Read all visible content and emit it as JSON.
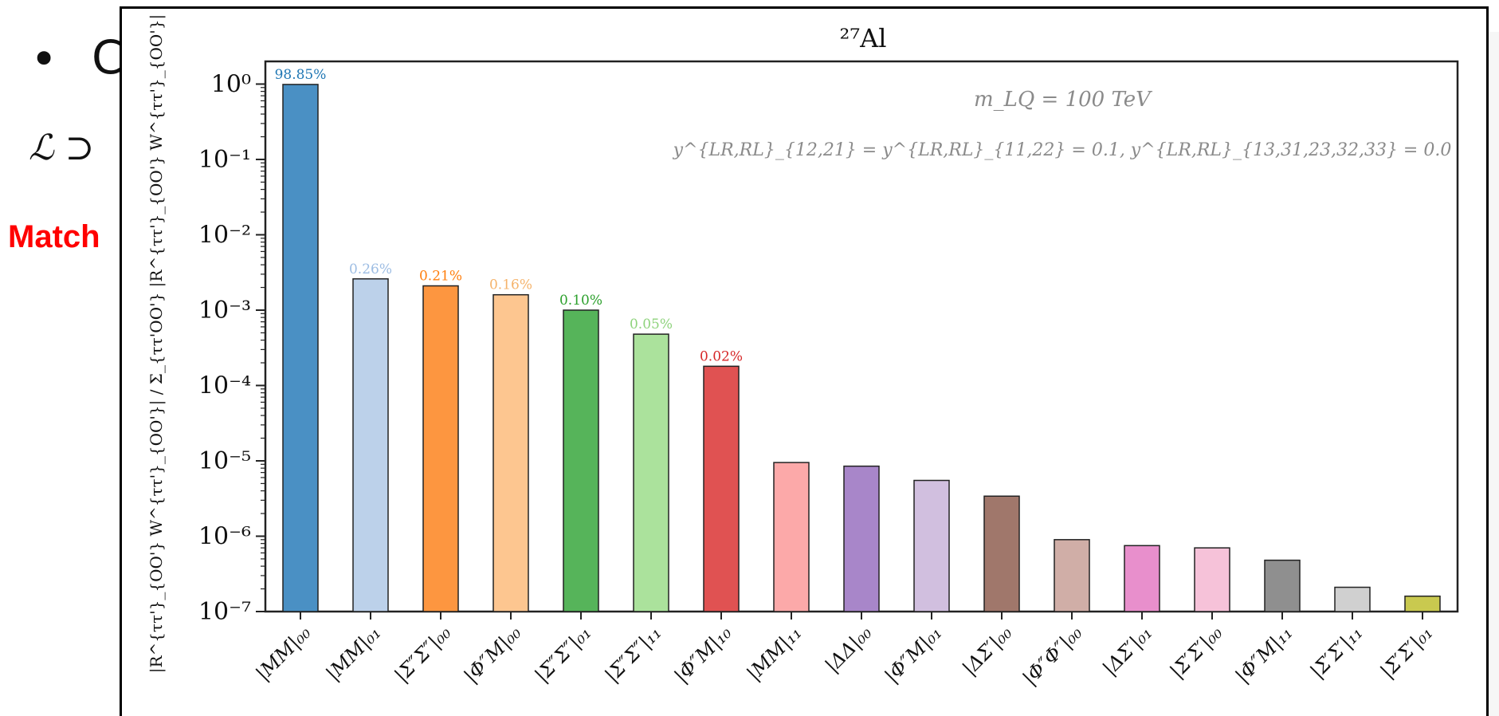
{
  "slide": {
    "bullet": "•",
    "bullet_text": "C",
    "lagrangian_fragment": "ℒ ⊃",
    "match_label": "Match"
  },
  "chart_data": {
    "type": "bar",
    "title": "²⁷Al",
    "ylabel": "|R^{ττ'}_{OO'} W^{ττ'}_{OO'}| / Σ_{ττ'OO'} |R^{ττ'}_{OO'} W^{ττ'}_{OO'}|",
    "yscale": "log",
    "ylim": [
      1e-07,
      2
    ],
    "yticks": [
      {
        "value": 1,
        "label": "10⁰"
      },
      {
        "value": 0.1,
        "label": "10⁻¹"
      },
      {
        "value": 0.01,
        "label": "10⁻²"
      },
      {
        "value": 0.001,
        "label": "10⁻³"
      },
      {
        "value": 0.0001,
        "label": "10⁻⁴"
      },
      {
        "value": 1e-05,
        "label": "10⁻⁵"
      },
      {
        "value": 1e-06,
        "label": "10⁻⁶"
      },
      {
        "value": 1e-07,
        "label": "10⁻⁷"
      }
    ],
    "annotation_lines": [
      "m_LQ = 100 TeV",
      "y^{LR,RL}_{12,21} = y^{LR,RL}_{11,22} = 0.1,   y^{LR,RL}_{13,31,23,32,33} = 0.0"
    ],
    "bars": [
      {
        "category": "|MM|₀₀",
        "value": 0.9885,
        "color": "#4a90c4",
        "label": "98.85%",
        "label_color": "#1f77b4"
      },
      {
        "category": "|MM|₀₁",
        "value": 0.0026,
        "color": "#bcd1ea",
        "label": "0.26%",
        "label_color": "#9dbde3"
      },
      {
        "category": "|Σ″Σ″|₀₀",
        "value": 0.0021,
        "color": "#fd9640",
        "label": "0.21%",
        "label_color": "#ff7f0e"
      },
      {
        "category": "|Φ″M|₀₀",
        "value": 0.0016,
        "color": "#fdc690",
        "label": "0.16%",
        "label_color": "#f5b36b"
      },
      {
        "category": "|Σ″Σ″|₀₁",
        "value": 0.001,
        "color": "#56b45a",
        "label": "0.10%",
        "label_color": "#2ca02c"
      },
      {
        "category": "|Σ″Σ″|₁₁",
        "value": 0.00048,
        "color": "#abe29c",
        "label": "0.05%",
        "label_color": "#8fd37d"
      },
      {
        "category": "|Φ″M|₁₀",
        "value": 0.00018,
        "color": "#e05252",
        "label": "0.02%",
        "label_color": "#d62728"
      },
      {
        "category": "|MM|₁₁",
        "value": 9.5e-06,
        "color": "#fca9a9"
      },
      {
        "category": "|ΔΔ|₀₀",
        "value": 8.5e-06,
        "color": "#a886c9"
      },
      {
        "category": "|Φ″M|₀₁",
        "value": 5.5e-06,
        "color": "#d1bfdf"
      },
      {
        "category": "|ΔΣ′|₀₀",
        "value": 3.4e-06,
        "color": "#a0776b"
      },
      {
        "category": "|Φ″Φ″|₀₀",
        "value": 9e-07,
        "color": "#d0aea7"
      },
      {
        "category": "|ΔΣ′|₀₁",
        "value": 7.5e-07,
        "color": "#e88fcc"
      },
      {
        "category": "|Σ′Σ′|₀₀",
        "value": 7e-07,
        "color": "#f6c2d9"
      },
      {
        "category": "|Φ″M|₁₁",
        "value": 4.8e-07,
        "color": "#8f8f8f"
      },
      {
        "category": "|Σ′Σ′|₁₁",
        "value": 2.1e-07,
        "color": "#d0d0d0"
      },
      {
        "category": "|Σ′Σ′|₀₁",
        "value": 1.6e-07,
        "color": "#c9c94f"
      }
    ]
  }
}
